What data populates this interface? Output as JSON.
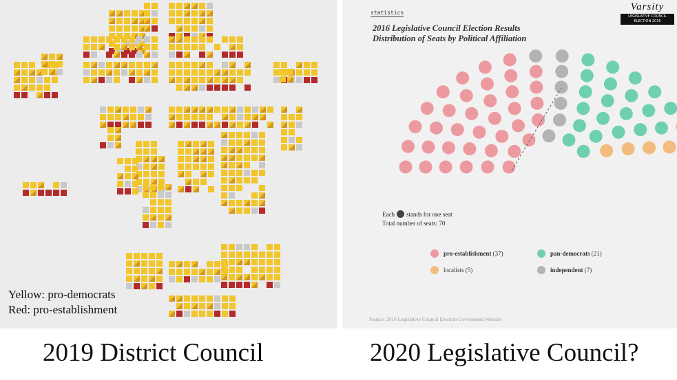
{
  "left_panel": {
    "legend_yellow": "Yellow: pro-democrats",
    "legend_red": "Red: pro-establishment",
    "caption": "2019 District Council",
    "colors": {
      "pro_democrat": "#f2c52b",
      "pro_establishment": "#b52a2a",
      "other": "#c9c9c9"
    }
  },
  "right_panel": {
    "caption": "2020 Legislative Council?",
    "section_label": "statistics",
    "brand_logo": "Varsity",
    "brand_tag_line1": "LEGISLATIVE COUNCIL",
    "brand_tag_line2": "ELECTION 2016",
    "title_line1": "2016 Legislative Council Election Results",
    "title_line2": "Distribution of Seats by Political Affiliation",
    "note_prefix": "Each",
    "note_suffix": "stands for one seat",
    "total_seats_label": "Total number of seats: 70",
    "source": "Source: 2016 Legislative Council Election Government Website"
  },
  "chart_data": {
    "type": "parliament",
    "title": "2016 Legislative Council Election Results",
    "subtitle": "Distribution of Seats by Political Affiliation",
    "total_seats": 70,
    "series": [
      {
        "name": "pro-establishment",
        "label": "pro-establishment",
        "count_label": "(37)",
        "value": 37,
        "color": "#ec9aa0"
      },
      {
        "name": "independent",
        "label": "independent",
        "count_label": "(7)",
        "value": 7,
        "color": "#b3b3b3"
      },
      {
        "name": "pan-democrats",
        "label": "pan-democrats",
        "count_label": "(21)",
        "value": 21,
        "color": "#6fcfb1"
      },
      {
        "name": "localists",
        "label": "localists",
        "count_label": "(5)",
        "value": 5,
        "color": "#f3bb7d"
      }
    ]
  }
}
